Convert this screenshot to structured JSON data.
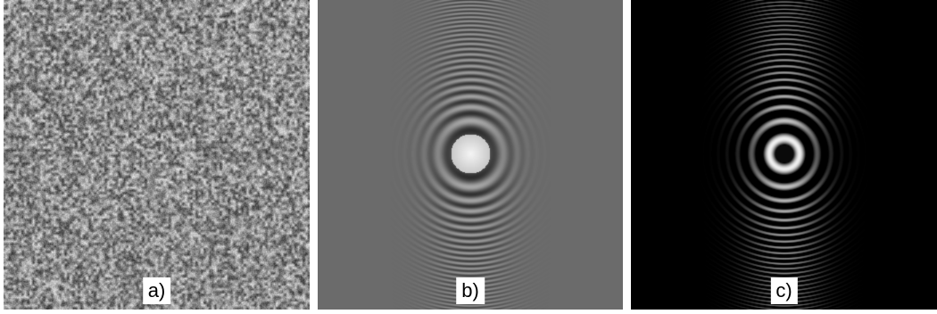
{
  "panels": [
    {
      "label": "a)",
      "content": "speckle-noise-texture"
    },
    {
      "label": "b)",
      "content": "fringe-pattern-gray-background"
    },
    {
      "label": "c)",
      "content": "fringe-pattern-black-background"
    }
  ],
  "colors": {
    "page_background": "#ffffff",
    "panel_b_background": "#6b6b6b",
    "panel_c_background": "#000000",
    "label_background": "#ffffff",
    "label_text": "#000000"
  }
}
